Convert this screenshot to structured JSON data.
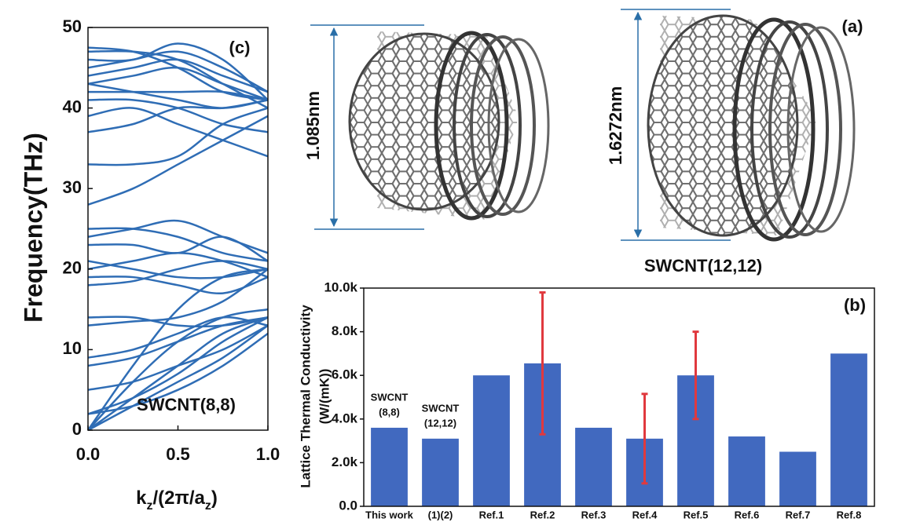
{
  "chart_data": [
    {
      "type": "line",
      "panel_label": "(c)",
      "annotation": "SWCNT(8,8)",
      "ylabel": "Frequency(THz)",
      "xlabel": {
        "parts": [
          "k",
          "z",
          "/(2π/a",
          "z",
          ")"
        ]
      },
      "color": "#2f6db5",
      "x": [
        0,
        0.25,
        0.5,
        0.75,
        1.0
      ],
      "xlim": [
        0,
        1.0
      ],
      "xticks": [
        {
          "value": 0,
          "label": "0.0"
        },
        0.5,
        {
          "value": 1,
          "label": "1.0"
        }
      ],
      "ylim": [
        0,
        50
      ],
      "yticks": [
        0,
        10,
        20,
        30,
        40,
        50
      ],
      "series": [
        {
          "values": [
            0,
            6,
            11,
            14,
            15
          ]
        },
        {
          "values": [
            0,
            4,
            8,
            12,
            14
          ]
        },
        {
          "values": [
            0,
            3,
            6,
            9,
            13
          ]
        },
        {
          "values": [
            0,
            8,
            15,
            19,
            20
          ]
        },
        {
          "values": [
            2,
            3,
            5,
            8,
            12
          ]
        },
        {
          "values": [
            2,
            4,
            7,
            11,
            14
          ]
        },
        {
          "values": [
            5,
            6,
            8,
            10,
            13
          ]
        },
        {
          "values": [
            8,
            9,
            11,
            13,
            14
          ]
        },
        {
          "values": [
            9,
            10,
            12,
            14,
            13
          ]
        },
        {
          "values": [
            13,
            13.5,
            14,
            16,
            20
          ]
        },
        {
          "values": [
            14,
            14,
            13,
            13,
            14
          ]
        },
        {
          "values": [
            18,
            18.5,
            20,
            21,
            20
          ]
        },
        {
          "values": [
            19,
            19,
            18,
            17,
            19
          ]
        },
        {
          "values": [
            20,
            21,
            22,
            21,
            19
          ]
        },
        {
          "values": [
            21,
            20,
            19,
            19,
            20
          ]
        },
        {
          "values": [
            23,
            23,
            22,
            24,
            21
          ]
        },
        {
          "values": [
            24,
            25,
            26,
            24,
            22
          ]
        },
        {
          "values": [
            25,
            25,
            24,
            22,
            21
          ]
        },
        {
          "values": [
            28,
            30,
            33,
            36,
            39
          ]
        },
        {
          "values": [
            33,
            33,
            34,
            38,
            40
          ]
        },
        {
          "values": [
            39,
            40,
            38,
            36,
            34
          ]
        },
        {
          "values": [
            37,
            38,
            40,
            40,
            41
          ]
        },
        {
          "values": [
            42,
            42,
            42,
            42,
            41
          ]
        },
        {
          "values": [
            43,
            44,
            45,
            43,
            41
          ]
        },
        {
          "values": [
            44,
            45,
            46,
            44,
            42
          ]
        },
        {
          "values": [
            45,
            46,
            47,
            45,
            42
          ]
        },
        {
          "values": [
            46,
            46,
            48,
            46,
            41
          ]
        },
        {
          "values": [
            47,
            47,
            46,
            43,
            40
          ]
        },
        {
          "values": [
            47.5,
            47,
            45,
            42,
            41
          ]
        },
        {
          "values": [
            41,
            41,
            40,
            38,
            37
          ]
        },
        {
          "values": [
            43,
            42,
            41,
            40,
            41
          ]
        }
      ]
    },
    {
      "type": "bar",
      "panel_label": "(b)",
      "ylabel": [
        "Lattice Thermal Conductivity",
        "(W/(mK))"
      ],
      "categories": [
        "This work",
        "(1)(2)",
        "Ref.1",
        "Ref.2",
        "Ref.3",
        "Ref.4",
        "Ref.5",
        "Ref.6",
        "Ref.7",
        "Ref.8"
      ],
      "values": [
        3600,
        3100,
        6000,
        6550,
        3600,
        3100,
        6000,
        3200,
        2500,
        7000
      ],
      "errors": [
        null,
        null,
        null,
        3250,
        null,
        2050,
        2000,
        null,
        null,
        null
      ],
      "color": "#4169bf",
      "error_color": "#e0393e",
      "annotations": [
        [
          "SWCNT",
          "(8,8)"
        ],
        [
          "SWCNT",
          "(12,12)"
        ]
      ],
      "ylim": [
        0,
        10000
      ],
      "yticks": [
        {
          "value": 0,
          "label": "0.0"
        },
        {
          "value": 2000,
          "label": "2.0k"
        },
        {
          "value": 4000,
          "label": "4.0k"
        },
        {
          "value": 6000,
          "label": "6.0k"
        },
        {
          "value": 8000,
          "label": "8.0k"
        },
        {
          "value": 10000,
          "label": "10.0k"
        }
      ]
    }
  ],
  "panel_a": {
    "label": "(a)",
    "left_diameter": "1.085nm",
    "right_diameter": "1.6272nm",
    "right_name": "SWCNT(12,12)"
  }
}
